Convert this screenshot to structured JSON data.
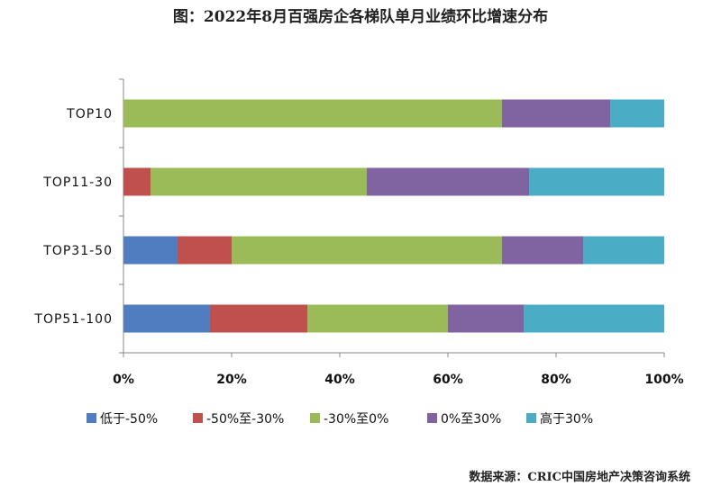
{
  "chart_data": {
    "type": "bar",
    "orientation": "horizontal",
    "stacked": true,
    "percent": true,
    "title": "图：2022年8月百强房企各梯队单月业绩环比增速分布",
    "source": "数据来源：CRIC中国房地产决策咨询系统",
    "categories": [
      "TOP10",
      "TOP11-30",
      "TOP31-50",
      "TOP51-100"
    ],
    "series": [
      {
        "name": "低于-50%",
        "color": "#4f7dbf",
        "values": [
          0,
          0,
          10,
          16
        ]
      },
      {
        "name": "-50%至-30%",
        "color": "#c0504d",
        "values": [
          0,
          5,
          10,
          18
        ]
      },
      {
        "name": "-30%至0%",
        "color": "#9bbb59",
        "values": [
          70,
          40,
          50,
          26
        ]
      },
      {
        "name": "0%至30%",
        "color": "#8064a2",
        "values": [
          20,
          30,
          15,
          14
        ]
      },
      {
        "name": "高于30%",
        "color": "#4bacc6",
        "values": [
          10,
          25,
          15,
          26
        ]
      }
    ],
    "xlim": [
      0,
      100
    ],
    "xticks": [
      "0%",
      "20%",
      "40%",
      "60%",
      "80%",
      "100%"
    ],
    "legend": "bottom",
    "grid": false
  }
}
